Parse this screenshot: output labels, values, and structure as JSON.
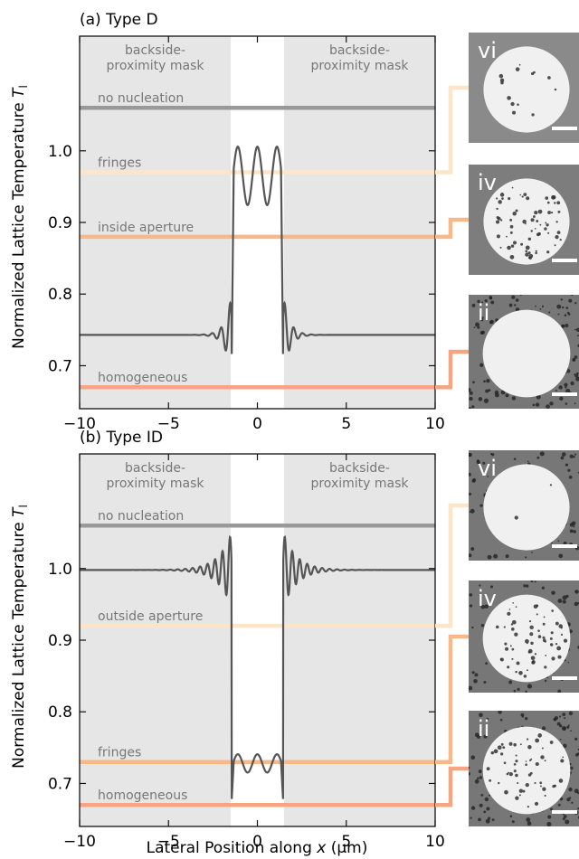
{
  "ylabel": "Normalized Lattice Temperature",
  "ylabel_symbol": "T",
  "ylabel_sub": "l",
  "xlabel_prefix": "Lateral Position along ",
  "xlabel_var": "x",
  "xlabel_suffix": " (µm)",
  "chart_data": [
    {
      "type": "line",
      "title": "(a) Type D",
      "xlim": [
        -10,
        10
      ],
      "ylim": [
        0.64,
        1.16
      ],
      "xticks": [
        -10,
        -5,
        0,
        5,
        10
      ],
      "xtick_labels": [
        "−10",
        "−5",
        "0",
        "5",
        "10"
      ],
      "yticks": [
        0.7,
        0.8,
        0.9,
        1.0
      ],
      "ytick_labels": [
        "0.7",
        "0.8",
        "0.9",
        "1.0"
      ],
      "mask_regions": [
        {
          "x0": -10,
          "x1": -1.5,
          "label_line1": "backside-",
          "label_line2": "proximity mask"
        },
        {
          "x0": 1.5,
          "x1": 10,
          "label_line1": "backside-",
          "label_line2": "proximity mask"
        }
      ],
      "thresholds": [
        {
          "label": "no nucleation",
          "y": 1.06,
          "color": "#999999"
        },
        {
          "label": "fringes",
          "y": 0.97,
          "color": "#fde5c8"
        },
        {
          "label": "inside aperture",
          "y": 0.88,
          "color": "#f8b98a"
        },
        {
          "label": "homogeneous",
          "y": 0.67,
          "color": "#f5a582"
        }
      ],
      "profile": {
        "outside_level": 0.743,
        "inside_mean": 0.965,
        "inside_amplitude": 0.048,
        "inside_peaks_x": [
          -1.1,
          0.0,
          1.1
        ],
        "inside_valleys_x": [
          -0.55,
          0.55
        ],
        "inside_valley_value": 0.93,
        "aperture_edge": 1.45,
        "edge_overshoot_high": 0.8,
        "edge_overshoot_low": 0.7
      },
      "micrographs": [
        {
          "label": "vi",
          "style": "clean",
          "threshold": "fringes"
        },
        {
          "label": "iv",
          "style": "inside",
          "threshold": "inside aperture"
        },
        {
          "label": "ii",
          "style": "homogeneous",
          "threshold": "homogeneous"
        }
      ]
    },
    {
      "type": "line",
      "title": "(b) Type ID",
      "xlim": [
        -10,
        10
      ],
      "ylim": [
        0.64,
        1.16
      ],
      "xticks": [
        -10,
        -5,
        0,
        5,
        10
      ],
      "xtick_labels": [
        "−10",
        "−5",
        "0",
        "5",
        "10"
      ],
      "yticks": [
        0.7,
        0.8,
        0.9,
        1.0
      ],
      "ytick_labels": [
        "0.7",
        "0.8",
        "0.9",
        "1.0"
      ],
      "mask_regions": [
        {
          "x0": -10,
          "x1": -1.5,
          "label_line1": "backside-",
          "label_line2": "proximity mask"
        },
        {
          "x0": 1.5,
          "x1": 10,
          "label_line1": "backside-",
          "label_line2": "proximity mask"
        }
      ],
      "thresholds": [
        {
          "label": "no nucleation",
          "y": 1.06,
          "color": "#999999"
        },
        {
          "label": "outside aperture",
          "y": 0.92,
          "color": "#fde5c8"
        },
        {
          "label": "fringes",
          "y": 0.73,
          "color": "#f8b98a"
        },
        {
          "label": "homogeneous",
          "y": 0.67,
          "color": "#f5a582"
        }
      ],
      "profile": {
        "outside_level": 0.998,
        "inside_mean": 0.728,
        "inside_amplitude": 0.015,
        "inside_peaks_x": [
          -1.1,
          0.0,
          1.1
        ],
        "inside_valleys_x": [
          -0.55,
          0.55
        ],
        "inside_valley_value": 0.715,
        "aperture_edge": 1.45,
        "edge_overshoot_high": 1.05,
        "edge_overshoot_low": 0.675
      },
      "micrographs": [
        {
          "label": "vi",
          "style": "clean-dark",
          "threshold": "outside aperture"
        },
        {
          "label": "iv",
          "style": "fringes",
          "threshold": "fringes"
        },
        {
          "label": "ii",
          "style": "homogeneous-dark",
          "threshold": "homogeneous"
        }
      ]
    }
  ]
}
